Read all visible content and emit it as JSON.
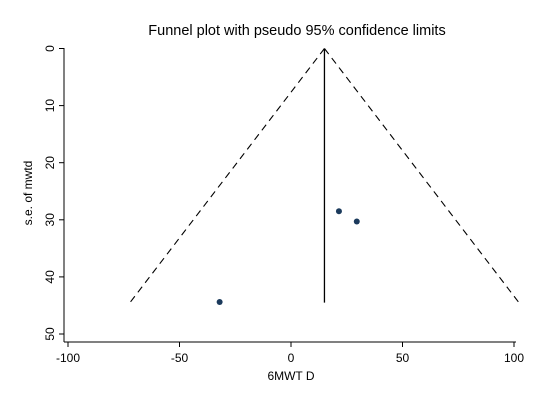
{
  "chart_data": {
    "type": "scatter",
    "title": "Funnel plot with pseudo 95% confidence limits",
    "xlabel": "6MWT D",
    "ylabel": "s.e. of mwtd",
    "xlim": [
      -100,
      100
    ],
    "ylim": [
      0,
      50
    ],
    "y_inverted": true,
    "grid": false,
    "x_ticks": [
      "-100",
      "-50",
      "0",
      "50",
      "100"
    ],
    "y_ticks": [
      "0",
      "10",
      "20",
      "30",
      "40",
      "50"
    ],
    "pooled_estimate": 15,
    "pooled_line_se_range": [
      0,
      44.5
    ],
    "confidence_limits": [
      {
        "style": "dashed",
        "points": [
          [
            15,
            0
          ],
          [
            -72.2,
            44.5
          ]
        ]
      },
      {
        "style": "dashed",
        "points": [
          [
            15,
            0
          ],
          [
            102.2,
            44.5
          ]
        ]
      }
    ],
    "points": [
      {
        "x": 21.5,
        "y": 28.5
      },
      {
        "x": 29.5,
        "y": 30.3
      },
      {
        "x": -32,
        "y": 44.4
      }
    ],
    "colors": {
      "points": "#1b3a5c",
      "lines": "#000000"
    }
  }
}
